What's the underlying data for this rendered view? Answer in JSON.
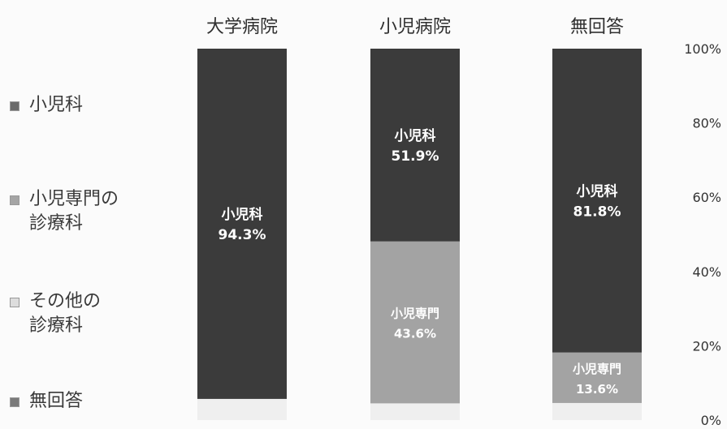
{
  "chart_data": {
    "type": "bar",
    "stacked": true,
    "orientation": "vertical",
    "categories": [
      "大学病院",
      "小児病院",
      "無回答"
    ],
    "series": [
      {
        "name": "小児科",
        "values": [
          94.3,
          51.9,
          81.8
        ],
        "color": "#3b3b3b",
        "label_prefix": "小児科"
      },
      {
        "name": "小児専門の\n診療科",
        "values": [
          0,
          43.6,
          13.6
        ],
        "color": "#a3a3a3",
        "label_prefix": "小児専門"
      },
      {
        "name": "その他の\n診療科",
        "values": [
          0,
          0,
          0
        ],
        "color": "#e4e4e4",
        "label_prefix": ""
      },
      {
        "name": "無回答",
        "values": [
          5.7,
          4.5,
          4.6
        ],
        "color": "#efefef",
        "label_prefix": ""
      }
    ],
    "yticks": [
      "100%",
      "80%",
      "60%",
      "40%",
      "20%",
      "0%"
    ],
    "ylim": [
      0,
      100
    ],
    "axis_position": "right",
    "legend_position": "left"
  }
}
